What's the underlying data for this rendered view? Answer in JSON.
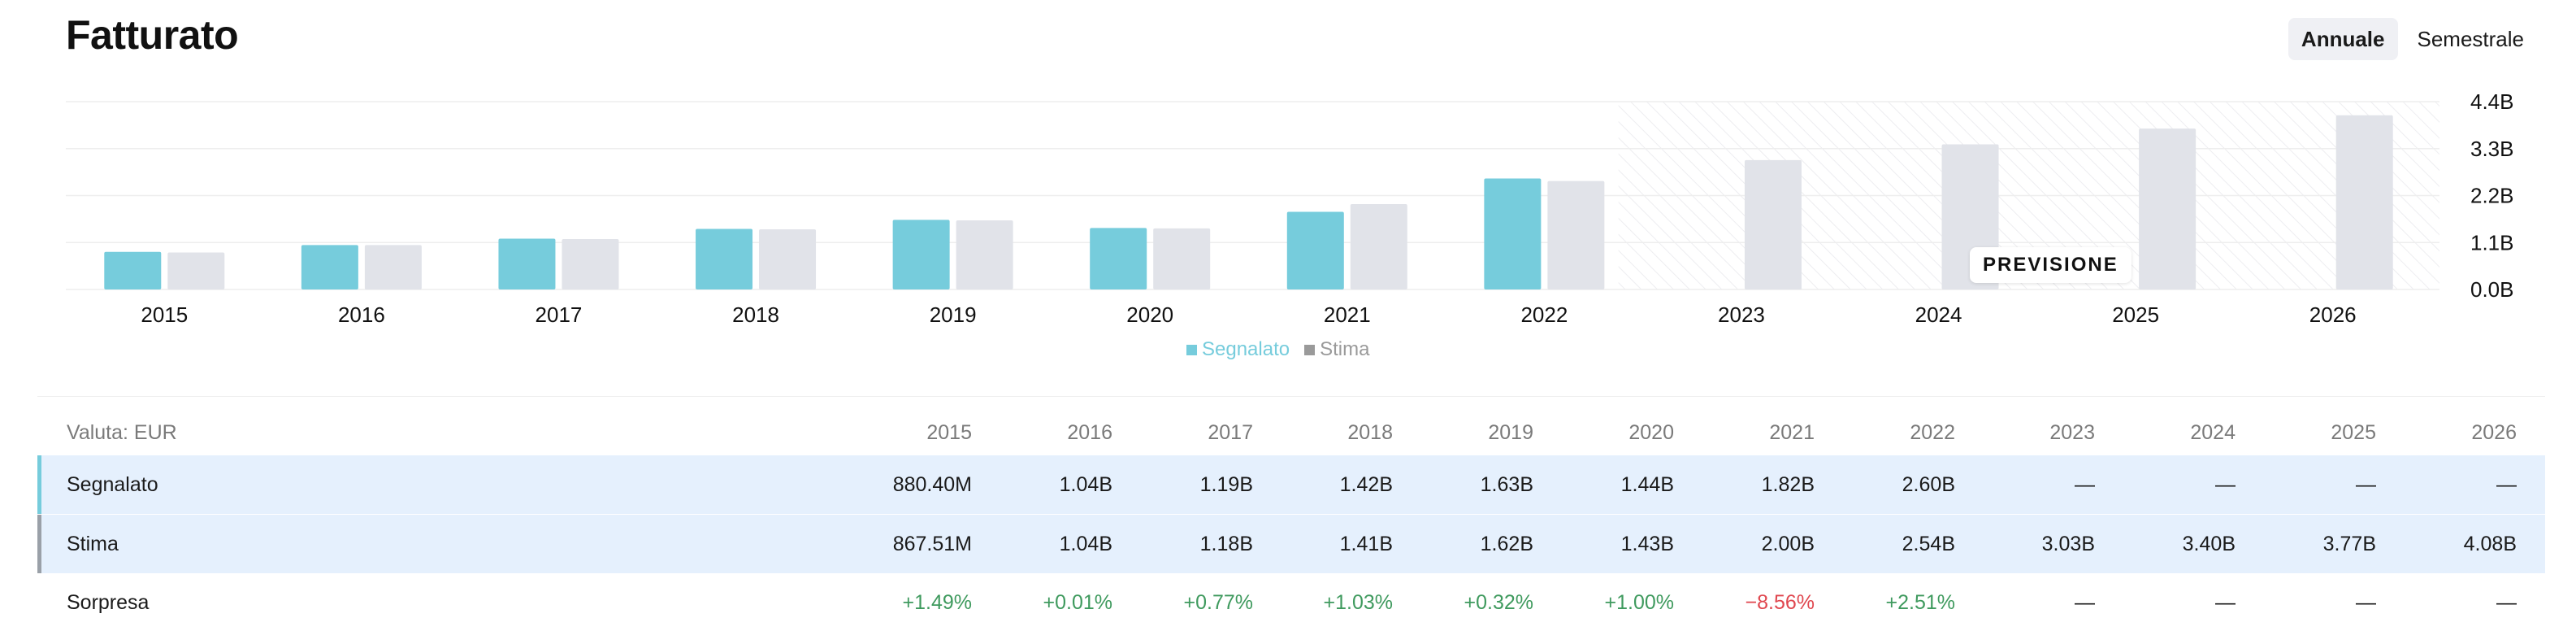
{
  "header": {
    "title": "Fatturato"
  },
  "toggle": {
    "annual": "Annuale",
    "semiannual": "Semestrale"
  },
  "forecast_badge": "PREVISIONE",
  "legend": {
    "reported": "Segnalato",
    "estimate": "Stima"
  },
  "colors": {
    "reported": "#76ccdc",
    "estimate": "#e1e3e9",
    "positive": "#3f9a5e",
    "negative": "#e0474f"
  },
  "chart_data": {
    "type": "bar",
    "categories": [
      "2015",
      "2016",
      "2017",
      "2018",
      "2019",
      "2020",
      "2021",
      "2022",
      "2023",
      "2024",
      "2025",
      "2026"
    ],
    "series": [
      {
        "name": "Segnalato",
        "values": [
          0.8804,
          1.04,
          1.19,
          1.42,
          1.63,
          1.44,
          1.82,
          2.6,
          null,
          null,
          null,
          null
        ]
      },
      {
        "name": "Stima",
        "values": [
          0.86751,
          1.04,
          1.18,
          1.41,
          1.62,
          1.43,
          2.0,
          2.54,
          3.03,
          3.4,
          3.77,
          4.08
        ]
      }
    ],
    "y_ticks": [
      "0.0B",
      "1.1B",
      "2.2B",
      "3.3B",
      "4.4B"
    ],
    "ylim": [
      0,
      4.4
    ],
    "forecast_from": "2023",
    "legend_position": "bottom-center",
    "grid": true
  },
  "table": {
    "currency_label": "Valuta: EUR",
    "years": [
      "2015",
      "2016",
      "2017",
      "2018",
      "2019",
      "2020",
      "2021",
      "2022",
      "2023",
      "2024",
      "2025",
      "2026"
    ],
    "rows": [
      {
        "label": "Segnalato",
        "values": [
          "880.40M",
          "1.04B",
          "1.19B",
          "1.42B",
          "1.63B",
          "1.44B",
          "1.82B",
          "2.60B",
          "—",
          "—",
          "—",
          "—"
        ]
      },
      {
        "label": "Stima",
        "values": [
          "867.51M",
          "1.04B",
          "1.18B",
          "1.41B",
          "1.62B",
          "1.43B",
          "2.00B",
          "2.54B",
          "3.03B",
          "3.40B",
          "3.77B",
          "4.08B"
        ]
      },
      {
        "label": "Sorpresa",
        "values": [
          "+1.49%",
          "+0.01%",
          "+0.77%",
          "+1.03%",
          "+0.32%",
          "+1.00%",
          "−8.56%",
          "+2.51%",
          "—",
          "—",
          "—",
          "—"
        ]
      }
    ]
  }
}
